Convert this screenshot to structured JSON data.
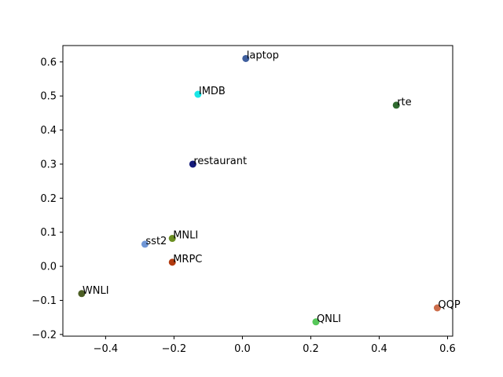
{
  "chart_data": {
    "type": "scatter",
    "title": "",
    "xlabel": "",
    "ylabel": "",
    "xlim": [
      -0.525,
      0.615
    ],
    "ylim": [
      -0.205,
      0.648
    ],
    "xticks": [
      "−0.4",
      "−0.2",
      "0.0",
      "0.2",
      "0.4",
      "0.6"
    ],
    "yticks": [
      "−0.2",
      "−0.1",
      "0.0",
      "0.1",
      "0.2",
      "0.3",
      "0.4",
      "0.5",
      "0.6"
    ],
    "xtick_values": [
      -0.4,
      -0.2,
      0.0,
      0.2,
      0.4,
      0.6
    ],
    "ytick_values": [
      -0.2,
      -0.1,
      0.0,
      0.1,
      0.2,
      0.3,
      0.4,
      0.5,
      0.6
    ],
    "grid": false,
    "points": [
      {
        "label": "laptop",
        "x": 0.01,
        "y": 0.61,
        "color": "#3f5f9e"
      },
      {
        "label": "IMDB",
        "x": -0.13,
        "y": 0.505,
        "color": "#18e6e6"
      },
      {
        "label": "rte",
        "x": 0.45,
        "y": 0.473,
        "color": "#2f6a2f"
      },
      {
        "label": "restaurant",
        "x": -0.145,
        "y": 0.3,
        "color": "#141a7a"
      },
      {
        "label": "MNLI",
        "x": -0.205,
        "y": 0.082,
        "color": "#6b8f22"
      },
      {
        "label": "sst2",
        "x": -0.285,
        "y": 0.065,
        "color": "#6f96d6"
      },
      {
        "label": "MRPC",
        "x": -0.205,
        "y": 0.012,
        "color": "#b23a0f"
      },
      {
        "label": "WNLI",
        "x": -0.47,
        "y": -0.08,
        "color": "#4c5e24"
      },
      {
        "label": "QQP",
        "x": 0.57,
        "y": -0.122,
        "color": "#cc6d4b"
      },
      {
        "label": "QNLI",
        "x": 0.215,
        "y": -0.163,
        "color": "#57c85a"
      }
    ]
  }
}
